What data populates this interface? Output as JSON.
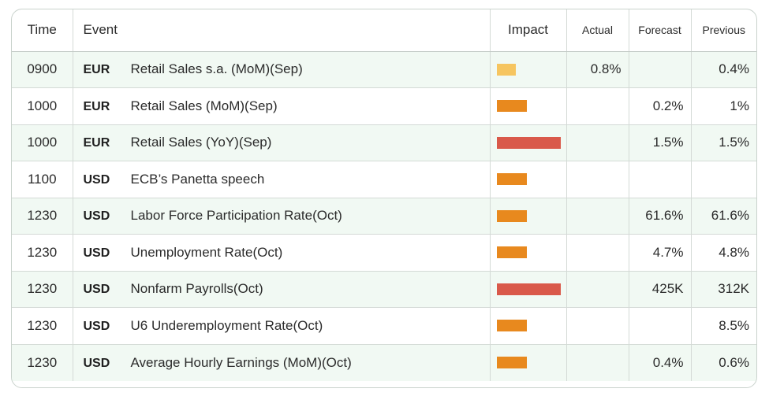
{
  "headers": {
    "time": "Time",
    "event": "Event",
    "impact": "Impact",
    "actual": "Actual",
    "forecast": "Forecast",
    "previous": "Previous"
  },
  "impact_colors": {
    "low": "#f6c560",
    "medium": "#e8891e",
    "high": "#d9594a"
  },
  "rows": [
    {
      "time": "0900",
      "currency": "EUR",
      "event": "Retail Sales s.a. (MoM)(Sep)",
      "impact": "low",
      "actual": "0.8%",
      "forecast": "",
      "previous": "0.4%"
    },
    {
      "time": "1000",
      "currency": "EUR",
      "event": "Retail Sales (MoM)(Sep)",
      "impact": "medium",
      "actual": "",
      "forecast": "0.2%",
      "previous": "1%"
    },
    {
      "time": "1000",
      "currency": "EUR",
      "event": "Retail Sales (YoY)(Sep)",
      "impact": "high",
      "actual": "",
      "forecast": "1.5%",
      "previous": "1.5%"
    },
    {
      "time": "1100",
      "currency": "USD",
      "event": "ECB’s Panetta speech",
      "impact": "medium",
      "actual": "",
      "forecast": "",
      "previous": ""
    },
    {
      "time": "1230",
      "currency": "USD",
      "event": "Labor Force Participation Rate(Oct)",
      "impact": "medium",
      "actual": "",
      "forecast": "61.6%",
      "previous": "61.6%"
    },
    {
      "time": "1230",
      "currency": "USD",
      "event": "Unemployment Rate(Oct)",
      "impact": "medium",
      "actual": "",
      "forecast": "4.7%",
      "previous": "4.8%"
    },
    {
      "time": "1230",
      "currency": "USD",
      "event": "Nonfarm Payrolls(Oct)",
      "impact": "high",
      "actual": "",
      "forecast": "425K",
      "previous": "312K"
    },
    {
      "time": "1230",
      "currency": "USD",
      "event": "U6 Underemployment Rate(Oct)",
      "impact": "medium",
      "actual": "",
      "forecast": "",
      "previous": "8.5%"
    },
    {
      "time": "1230",
      "currency": "USD",
      "event": "Average Hourly Earnings (MoM)(Oct)",
      "impact": "medium",
      "actual": "",
      "forecast": "0.4%",
      "previous": "0.6%"
    }
  ]
}
